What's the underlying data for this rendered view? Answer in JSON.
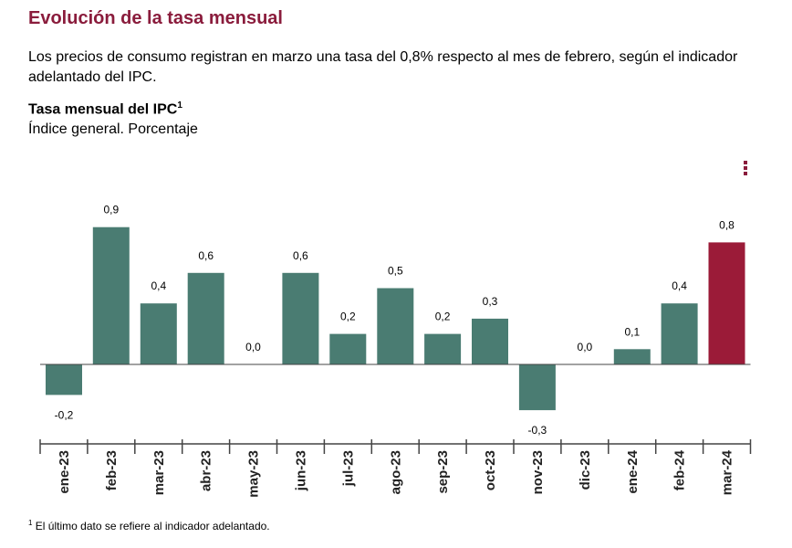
{
  "page": {
    "title": "Evolución de la tasa mensual",
    "description": "Los precios de consumo registran en marzo una tasa del 0,8% respecto al mes de febrero, según el indicador adelantado del IPC.",
    "chart_title": "Tasa mensual del IPC",
    "chart_title_sup": "1",
    "chart_subtitle": "Índice general. Porcentaje",
    "footnote_sup": "1",
    "footnote": "El último dato se refiere al indicador adelantado."
  },
  "colors": {
    "bar": "#4a7c72",
    "highlight": "#9b1b38",
    "title": "#8a1c3c",
    "axis": "#444444"
  },
  "chart_data": {
    "type": "bar",
    "title": "Tasa mensual del IPC",
    "subtitle": "Índice general. Porcentaje",
    "xlabel": "",
    "ylabel": "",
    "categories": [
      "ene-23",
      "feb-23",
      "mar-23",
      "abr-23",
      "may-23",
      "jun-23",
      "jul-23",
      "ago-23",
      "sep-23",
      "oct-23",
      "nov-23",
      "dic-23",
      "ene-24",
      "feb-24",
      "mar-24"
    ],
    "values": [
      -0.2,
      0.9,
      0.4,
      0.6,
      0.0,
      0.6,
      0.2,
      0.5,
      0.2,
      0.3,
      -0.3,
      0.0,
      0.1,
      0.4,
      0.8
    ],
    "labels": [
      "-0,2",
      "0,9",
      "0,4",
      "0,6",
      "0,0",
      "0,6",
      "0,2",
      "0,5",
      "0,2",
      "0,3",
      "-0,3",
      "0,0",
      "0,1",
      "0,4",
      "0,8"
    ],
    "highlight_index": 14,
    "ylim": [
      -0.3,
      0.9
    ],
    "grid": false
  }
}
